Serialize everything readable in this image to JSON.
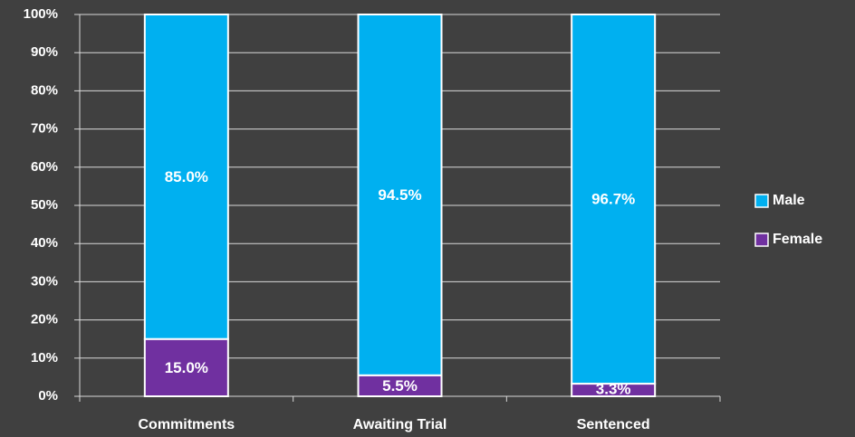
{
  "chart_data": {
    "type": "stacked_bar",
    "categories": [
      "Commitments",
      "Awaiting Trial",
      "Sentenced"
    ],
    "series": [
      {
        "name": "Female",
        "color": "#7030a0",
        "values": [
          15.0,
          5.5,
          3.3
        ],
        "value_labels": [
          "15.0%",
          "5.5%",
          "3.3%"
        ]
      },
      {
        "name": "Male",
        "color": "#00b0f0",
        "values": [
          85.0,
          94.5,
          96.7
        ],
        "value_labels": [
          "85.0%",
          "94.5%",
          "96.7%"
        ]
      }
    ],
    "ylim": [
      0,
      100
    ],
    "yticks": [
      {
        "value": 0,
        "label": "0%"
      },
      {
        "value": 10,
        "label": "10%"
      },
      {
        "value": 20,
        "label": "20%"
      },
      {
        "value": 30,
        "label": "30%"
      },
      {
        "value": 40,
        "label": "40%"
      },
      {
        "value": 50,
        "label": "50%"
      },
      {
        "value": 60,
        "label": "60%"
      },
      {
        "value": 70,
        "label": "70%"
      },
      {
        "value": 80,
        "label": "80%"
      },
      {
        "value": 90,
        "label": "90%"
      },
      {
        "value": 100,
        "label": "100%"
      }
    ],
    "grid": true,
    "legend": "right"
  }
}
